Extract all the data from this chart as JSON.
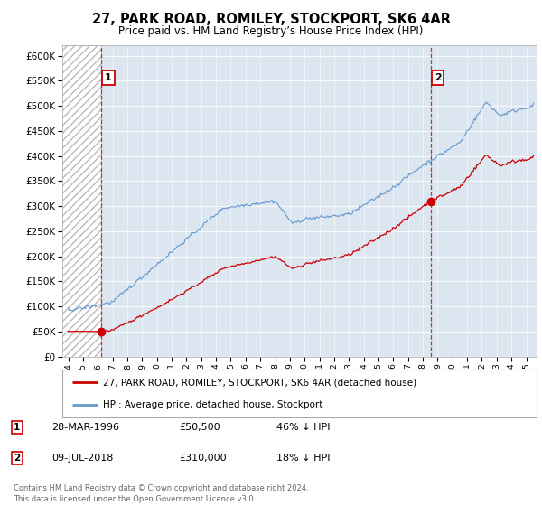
{
  "title": "27, PARK ROAD, ROMILEY, STOCKPORT, SK6 4AR",
  "subtitle": "Price paid vs. HM Land Registry’s House Price Index (HPI)",
  "legend_line1": "27, PARK ROAD, ROMILEY, STOCKPORT, SK6 4AR (detached house)",
  "legend_line2": "HPI: Average price, detached house, Stockport",
  "sale1_date": "28-MAR-1996",
  "sale1_price": 50500,
  "sale1_label": "£50,500",
  "sale1_pct": "46% ↓ HPI",
  "sale2_date": "09-JUL-2018",
  "sale2_price": 310000,
  "sale2_label": "£310,000",
  "sale2_pct": "18% ↓ HPI",
  "footer": "Contains HM Land Registry data © Crown copyright and database right 2024.\nThis data is licensed under the Open Government Licence v3.0.",
  "price_color": "#cc0000",
  "hpi_color": "#6699cc",
  "ylim_min": 0,
  "ylim_max": 620000,
  "sale1_x": 1996.23,
  "sale2_x": 2018.53,
  "background_color": "#ffffff",
  "plot_bg_color": "#dce6f1",
  "hatch_color": "#bbbbbb",
  "grid_color": "#ffffff",
  "annotation_box_color": "#cc0000"
}
